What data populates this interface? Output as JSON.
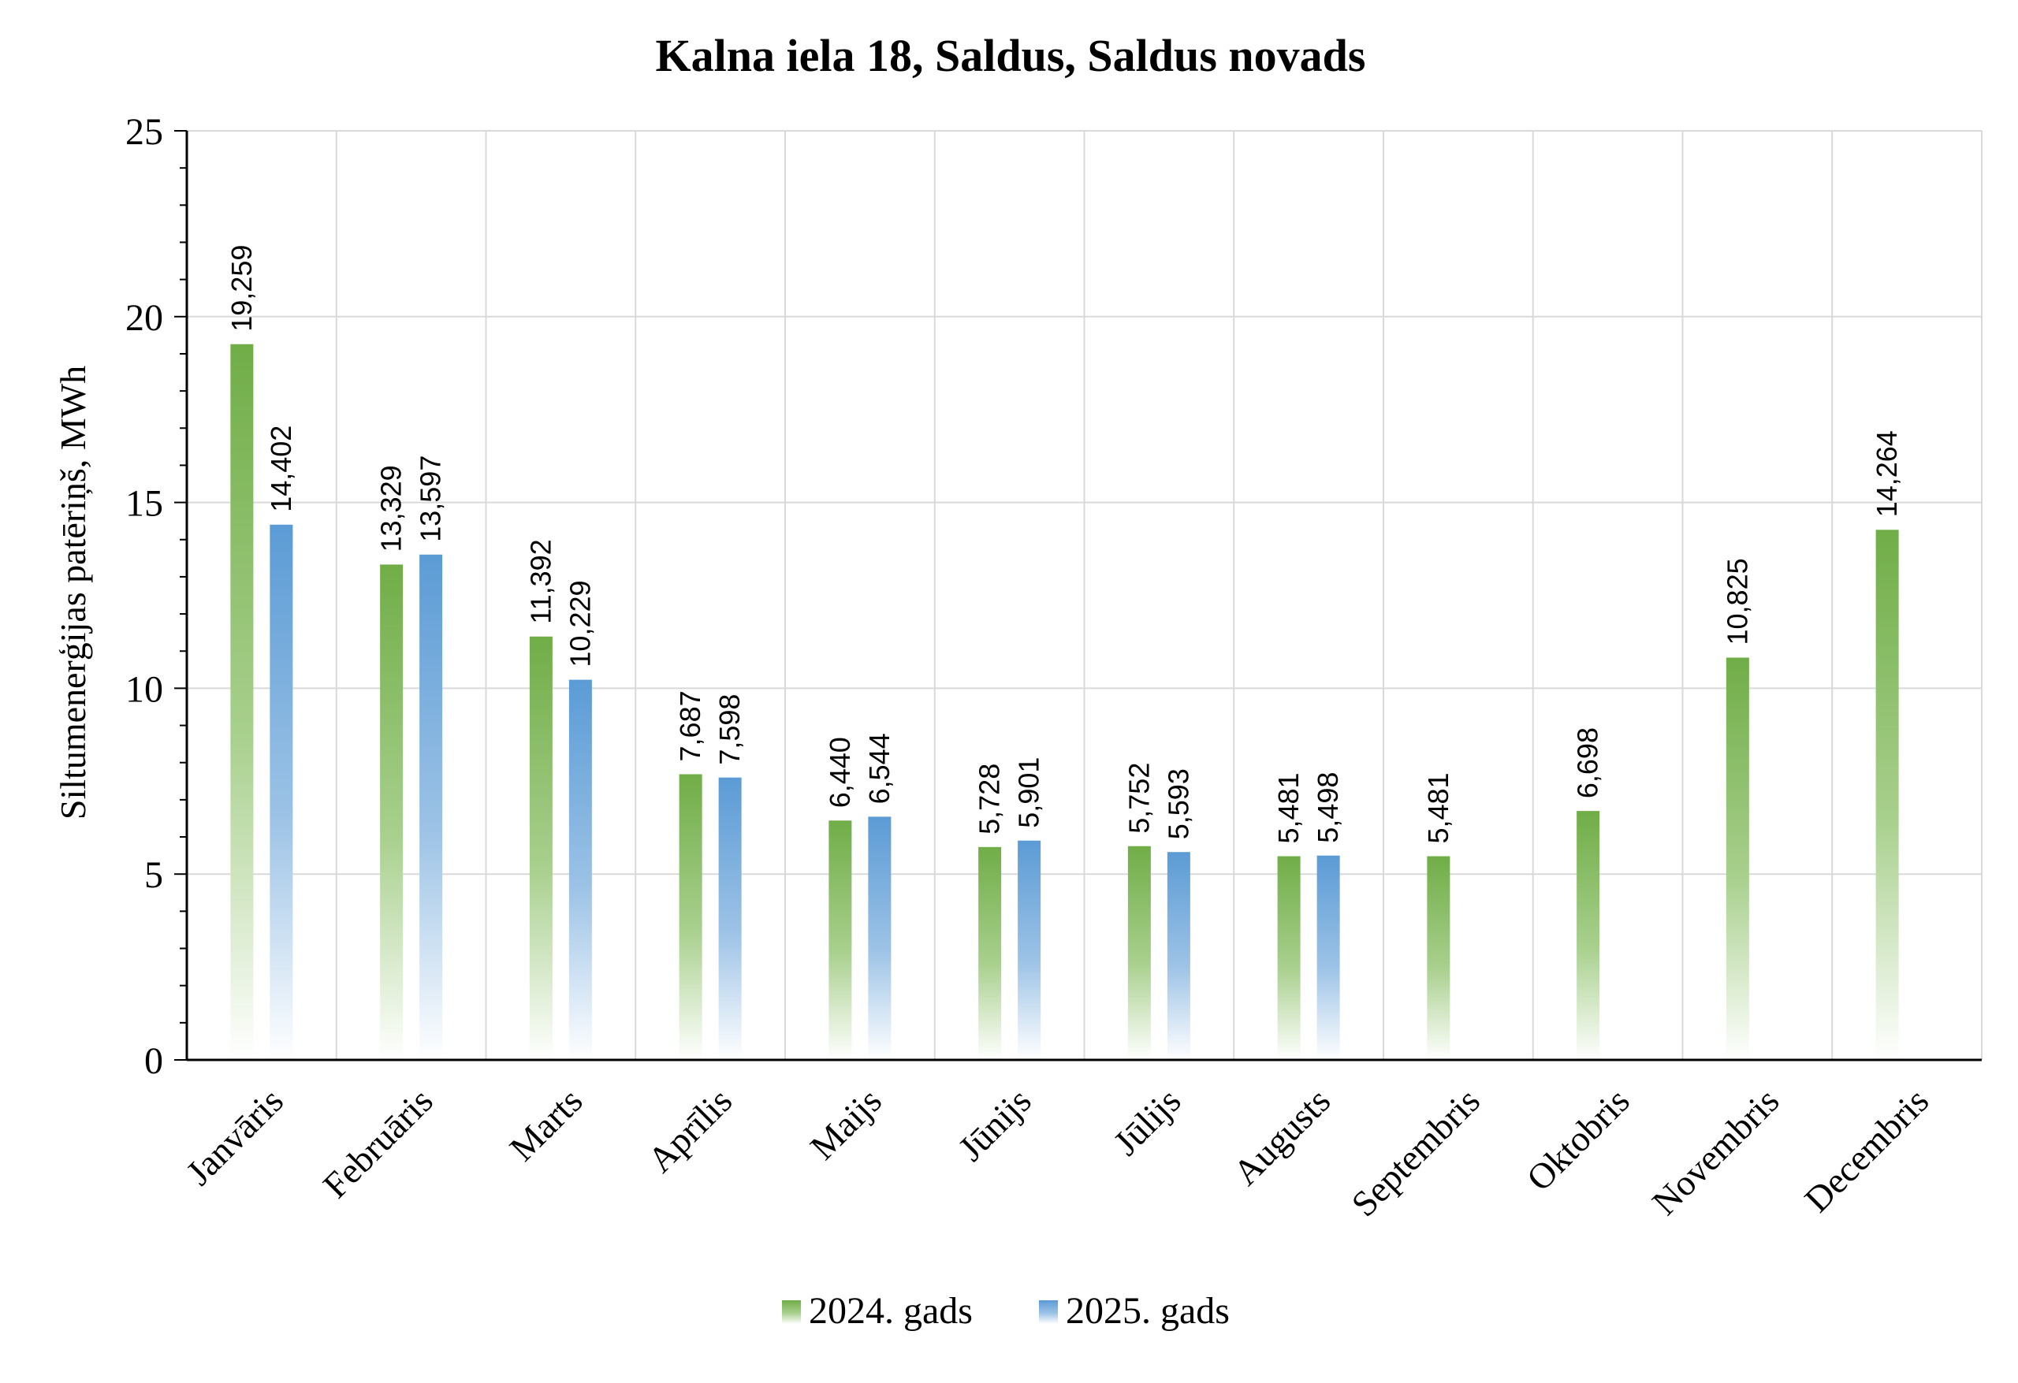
{
  "chart_data": {
    "type": "bar",
    "title": "Kalna iela 18, Saldus, Saldus novads",
    "xlabel": "",
    "ylabel": "Siltumenerģijas patēriņš, MWh",
    "ylim": [
      0,
      25
    ],
    "yticks": [
      "0",
      "5",
      "10",
      "15",
      "20",
      "25"
    ],
    "grid": true,
    "legend_position": "bottom",
    "categories": [
      "Janvāris",
      "Februāris",
      "Marts",
      "Aprīlis",
      "Maijs",
      "Jūnijs",
      "Jūlijs",
      "Augusts",
      "Septembris",
      "Oktobris",
      "Novembris",
      "Decembris"
    ],
    "series": [
      {
        "name": "2024. gads",
        "color": "#70ad47",
        "values": [
          19.259,
          13.329,
          11.392,
          7.687,
          6.44,
          5.728,
          5.752,
          5.481,
          5.481,
          6.698,
          10.825,
          14.264
        ],
        "labels": [
          "19,259",
          "13,329",
          "11,392",
          "7,687",
          "6,440",
          "5,728",
          "5,752",
          "5,481",
          "5,481",
          "6,698",
          "10,825",
          "14,264"
        ]
      },
      {
        "name": "2025. gads",
        "color": "#5b9bd5",
        "values": [
          14.402,
          13.597,
          10.229,
          7.598,
          6.544,
          5.901,
          5.593,
          5.498,
          null,
          null,
          null,
          null
        ],
        "labels": [
          "14,402",
          "13,597",
          "10,229",
          "7,598",
          "6,544",
          "5,901",
          "5,593",
          "5,498",
          null,
          null,
          null,
          null
        ]
      }
    ]
  }
}
